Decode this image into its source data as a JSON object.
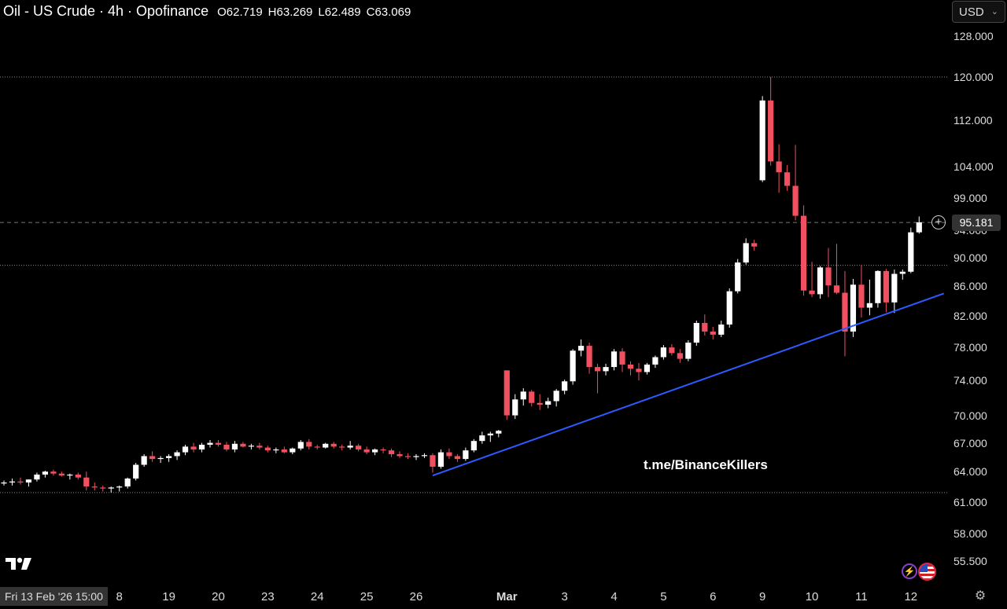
{
  "header": {
    "symbol": "Oil - US Crude · 4h · Opofinance",
    "open": "O62.719",
    "high": "H63.269",
    "low": "L62.489",
    "close": "C63.069"
  },
  "currency": "USD",
  "price_badge": "95.181",
  "date_badge": "Fri 13 Feb '26   15:00",
  "watermark": "t.me/BinanceKillers",
  "colors": {
    "up": "#ffffff",
    "down": "#f0505f",
    "trendline": "#2d5bff",
    "background": "#000000"
  },
  "icons": {
    "logo": "tradingview-logo-icon",
    "flash": "flash-icon",
    "flag": "us-flag-icon",
    "settings": "gear-icon",
    "add": "plus-circle-icon"
  },
  "chart_data": {
    "type": "candlestick",
    "title": "Oil - US Crude · 4h · Opofinance",
    "y_scale": "log",
    "ylim": [
      51.5,
      135
    ],
    "y_ticks": [
      "128.000",
      "120.000",
      "112.000",
      "104.000",
      "99.000",
      "94.000",
      "90.000",
      "86.000",
      "82.000",
      "78.000",
      "74.000",
      "70.000",
      "67.000",
      "64.000",
      "61.000",
      "58.000",
      "55.500"
    ],
    "x_ticks": [
      {
        "label": "8",
        "bar": 14
      },
      {
        "label": "19",
        "bar": 20
      },
      {
        "label": "20",
        "bar": 26
      },
      {
        "label": "23",
        "bar": 32
      },
      {
        "label": "24",
        "bar": 38
      },
      {
        "label": "25",
        "bar": 44
      },
      {
        "label": "26",
        "bar": 50
      },
      {
        "label": "Mar",
        "bar": 61,
        "bold": true
      },
      {
        "label": "3",
        "bar": 68
      },
      {
        "label": "4",
        "bar": 74
      },
      {
        "label": "5",
        "bar": 80
      },
      {
        "label": "6",
        "bar": 86
      },
      {
        "label": "9",
        "bar": 92
      },
      {
        "label": "10",
        "bar": 98
      },
      {
        "label": "11",
        "bar": 104
      },
      {
        "label": "12",
        "bar": 110
      }
    ],
    "horizontal_lines": [
      {
        "price": 120.0,
        "style": "dotted"
      },
      {
        "price": 95.181,
        "style": "dashed",
        "label": "current"
      },
      {
        "price": 88.9,
        "style": "dotted"
      },
      {
        "price": 61.9,
        "style": "dotted"
      }
    ],
    "trendline": {
      "start": {
        "bar": 52,
        "price": 63.6
      },
      "end": {
        "bar": 114,
        "price": 85.0
      }
    },
    "candles": [
      [
        62.8,
        63.1,
        62.6,
        62.9
      ],
      [
        62.9,
        63.3,
        62.6,
        63.0
      ],
      [
        63.0,
        63.4,
        62.7,
        62.9
      ],
      [
        62.9,
        63.2,
        62.5,
        63.2
      ],
      [
        63.2,
        63.9,
        63.0,
        63.7
      ],
      [
        63.7,
        64.1,
        63.4,
        64.0
      ],
      [
        64.0,
        64.2,
        63.6,
        63.8
      ],
      [
        63.8,
        64.0,
        63.5,
        63.6
      ],
      [
        63.6,
        63.8,
        63.2,
        63.7
      ],
      [
        63.7,
        63.9,
        63.2,
        63.4
      ],
      [
        63.4,
        64.0,
        62.1,
        62.5
      ],
      [
        62.5,
        62.9,
        62.1,
        62.4
      ],
      [
        62.4,
        62.6,
        62.0,
        62.3
      ],
      [
        62.3,
        62.5,
        61.9,
        62.4
      ],
      [
        62.4,
        62.6,
        62.0,
        62.5
      ],
      [
        62.5,
        63.4,
        62.3,
        63.3
      ],
      [
        63.3,
        64.9,
        63.1,
        64.7
      ],
      [
        64.7,
        65.8,
        64.5,
        65.6
      ],
      [
        65.6,
        66.1,
        65.0,
        65.3
      ],
      [
        65.3,
        65.6,
        64.9,
        65.4
      ],
      [
        65.4,
        65.8,
        65.0,
        65.6
      ],
      [
        65.6,
        66.2,
        65.2,
        66.0
      ],
      [
        66.0,
        66.8,
        65.7,
        66.6
      ],
      [
        66.6,
        67.0,
        66.0,
        66.3
      ],
      [
        66.3,
        67.0,
        66.0,
        66.8
      ],
      [
        66.8,
        67.3,
        66.5,
        67.0
      ],
      [
        67.0,
        67.3,
        66.6,
        66.8
      ],
      [
        66.8,
        67.1,
        66.1,
        66.3
      ],
      [
        66.3,
        67.2,
        66.0,
        66.9
      ],
      [
        66.9,
        67.1,
        66.5,
        66.6
      ],
      [
        66.6,
        66.9,
        66.3,
        66.7
      ],
      [
        66.7,
        67.0,
        66.3,
        66.5
      ],
      [
        66.5,
        66.7,
        66.0,
        66.2
      ],
      [
        66.2,
        66.5,
        65.9,
        66.3
      ],
      [
        66.3,
        66.6,
        65.9,
        66.0
      ],
      [
        66.0,
        66.5,
        65.8,
        66.4
      ],
      [
        66.4,
        67.3,
        66.2,
        67.1
      ],
      [
        67.1,
        67.4,
        66.3,
        66.6
      ],
      [
        66.6,
        66.8,
        66.3,
        66.5
      ],
      [
        66.5,
        67.0,
        66.4,
        66.9
      ],
      [
        66.9,
        67.1,
        66.4,
        66.6
      ],
      [
        66.6,
        66.8,
        66.2,
        66.5
      ],
      [
        66.5,
        67.2,
        66.3,
        66.7
      ],
      [
        66.7,
        66.9,
        66.1,
        66.3
      ],
      [
        66.3,
        66.6,
        65.8,
        66.0
      ],
      [
        66.0,
        66.4,
        65.7,
        66.3
      ],
      [
        66.3,
        66.5,
        65.9,
        66.2
      ],
      [
        66.2,
        66.4,
        65.5,
        65.8
      ],
      [
        65.8,
        66.1,
        65.4,
        65.6
      ],
      [
        65.6,
        65.9,
        65.3,
        65.5
      ],
      [
        65.5,
        65.8,
        65.2,
        65.6
      ],
      [
        65.6,
        65.9,
        65.4,
        65.7
      ],
      [
        65.7,
        65.9,
        63.9,
        64.5
      ],
      [
        64.5,
        66.3,
        64.3,
        66.0
      ],
      [
        66.0,
        66.4,
        65.3,
        65.6
      ],
      [
        65.6,
        65.8,
        65.0,
        65.3
      ],
      [
        65.3,
        66.5,
        65.1,
        66.2
      ],
      [
        66.2,
        67.4,
        66.0,
        67.2
      ],
      [
        67.2,
        68.2,
        66.9,
        67.8
      ],
      [
        67.8,
        68.2,
        67.1,
        68.0
      ],
      [
        68.0,
        68.4,
        67.6,
        68.3
      ],
      [
        75.2,
        75.2,
        69.5,
        70.0
      ],
      [
        70.0,
        72.4,
        69.6,
        71.8
      ],
      [
        71.8,
        73.1,
        71.1,
        72.7
      ],
      [
        72.7,
        72.9,
        71.0,
        71.4
      ],
      [
        71.4,
        72.4,
        70.6,
        71.2
      ],
      [
        71.2,
        72.0,
        70.8,
        71.6
      ],
      [
        71.6,
        73.0,
        71.0,
        72.8
      ],
      [
        72.8,
        74.1,
        72.4,
        73.9
      ],
      [
        73.9,
        77.8,
        73.5,
        77.6
      ],
      [
        77.6,
        79.0,
        76.9,
        78.2
      ],
      [
        78.2,
        78.6,
        74.8,
        75.6
      ],
      [
        75.6,
        76.0,
        72.5,
        75.1
      ],
      [
        75.1,
        76.0,
        74.6,
        75.6
      ],
      [
        75.6,
        77.8,
        75.2,
        77.5
      ],
      [
        77.5,
        77.9,
        75.0,
        75.9
      ],
      [
        75.9,
        76.3,
        74.6,
        75.4
      ],
      [
        75.4,
        76.1,
        74.0,
        75.0
      ],
      [
        75.0,
        76.1,
        74.7,
        75.9
      ],
      [
        75.9,
        77.0,
        75.5,
        76.8
      ],
      [
        76.8,
        78.3,
        76.5,
        78.0
      ],
      [
        78.0,
        78.4,
        77.0,
        77.3
      ],
      [
        77.3,
        77.8,
        76.1,
        76.6
      ],
      [
        76.6,
        78.9,
        76.3,
        78.6
      ],
      [
        78.6,
        81.4,
        78.2,
        81.1
      ],
      [
        81.1,
        82.2,
        79.5,
        80.0
      ],
      [
        80.0,
        80.6,
        79.0,
        79.6
      ],
      [
        79.6,
        81.4,
        79.3,
        80.9
      ],
      [
        80.9,
        85.7,
        80.5,
        85.3
      ],
      [
        85.3,
        89.8,
        85.0,
        89.3
      ],
      [
        89.3,
        92.8,
        89.0,
        92.1
      ],
      [
        92.1,
        92.6,
        91.0,
        91.6
      ],
      [
        101.8,
        116.4,
        101.5,
        115.6
      ],
      [
        115.6,
        120.0,
        104.2,
        104.9
      ],
      [
        104.9,
        107.8,
        99.8,
        103.1
      ],
      [
        103.1,
        104.3,
        100.1,
        100.9
      ],
      [
        100.9,
        107.7,
        95.5,
        96.2
      ],
      [
        96.2,
        97.8,
        84.7,
        85.4
      ],
      [
        85.4,
        89.4,
        84.5,
        84.9
      ],
      [
        84.9,
        88.8,
        84.3,
        88.6
      ],
      [
        88.6,
        91.4,
        84.5,
        86.1
      ],
      [
        86.1,
        92.0,
        84.9,
        85.1
      ],
      [
        85.1,
        88.1,
        76.9,
        80.0
      ],
      [
        80.0,
        87.0,
        79.3,
        86.2
      ],
      [
        86.2,
        88.9,
        81.8,
        83.1
      ],
      [
        83.1,
        86.9,
        82.1,
        83.7
      ],
      [
        83.7,
        88.2,
        83.1,
        88.1
      ],
      [
        88.1,
        88.4,
        82.5,
        83.8
      ],
      [
        83.8,
        88.3,
        82.4,
        87.7
      ],
      [
        87.7,
        88.3,
        86.9,
        88.0
      ],
      [
        88.0,
        94.4,
        87.8,
        93.7
      ],
      [
        93.7,
        96.1,
        93.5,
        95.2
      ]
    ]
  }
}
